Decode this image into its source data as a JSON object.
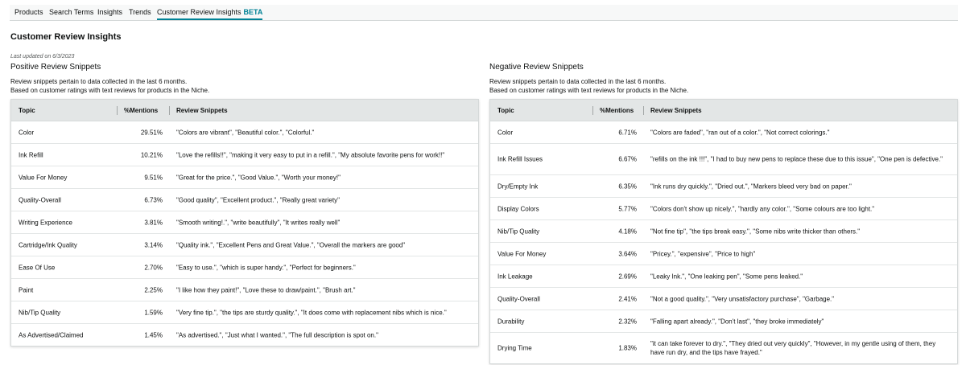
{
  "nav": {
    "tabs": [
      "Products",
      "Search Terms",
      "Insights",
      "Trends",
      "Customer Review Insights"
    ],
    "beta": "BETA",
    "active_color": "#008296"
  },
  "page": {
    "title": "Customer Review Insights",
    "last_updated": "Last updated on 6/3/2023"
  },
  "positive": {
    "title": "Positive Review Snippets",
    "desc1": "Review snippets pertain to data collected in the last 6 months.",
    "desc2": "Based on customer ratings with text reviews for products in the Niche.",
    "headers": [
      "Topic",
      "%Mentions",
      "Review Snippets"
    ],
    "rows": [
      {
        "topic": "Color",
        "pct": "29.51%",
        "snippet": "\"Colors are vibrant\", \"Beautiful color.\", \"Colorful.\""
      },
      {
        "topic": "Ink Refill",
        "pct": "10.21%",
        "snippet": "\"Love the refills!!\", \"making it very easy to put in a refill.\", \"My absolute favorite pens for work!!\""
      },
      {
        "topic": "Value For Money",
        "pct": "9.51%",
        "snippet": "\"Great for the price.\", \"Good Value.\", \"Worth your money!\""
      },
      {
        "topic": "Quality-Overall",
        "pct": "6.73%",
        "snippet": "\"Good quality\", \"Excellent product.\", \"Really great variety\""
      },
      {
        "topic": "Writing Experience",
        "pct": "3.81%",
        "snippet": "\"Smooth writing!.\", \"write beautifully\", \"It writes really well\""
      },
      {
        "topic": "Cartridge/Ink Quality",
        "pct": "3.14%",
        "snippet": "\"Quality ink.\", \"Excellent Pens and Great Value.\", \"Overall the markers are good\""
      },
      {
        "topic": "Ease Of Use",
        "pct": "2.70%",
        "snippet": "\"Easy to use.\", \"which is super handy.\", \"Perfect for beginners.\""
      },
      {
        "topic": "Paint",
        "pct": "2.25%",
        "snippet": "\"I like how they paint!\", \"Love these to draw/paint.\", \"Brush art.\""
      },
      {
        "topic": "Nib/Tip Quality",
        "pct": "1.59%",
        "snippet": "\"Very fine tip.\", \"the tips are sturdy quality.\", \"It does come with replacement nibs which is nice.\""
      },
      {
        "topic": "As Advertised/Claimed",
        "pct": "1.45%",
        "snippet": "\"As advertised.\", \"Just what I wanted.\", \"The full description is spot on.\""
      }
    ]
  },
  "negative": {
    "title": "Negative Review Snippets",
    "desc1": "Review snippets pertain to data collected in the last 6 months.",
    "desc2": "Based on customer ratings with text reviews for products in the Niche.",
    "headers": [
      "Topic",
      "%Mentions",
      "Review Snippets"
    ],
    "rows": [
      {
        "topic": "Color",
        "pct": "6.71%",
        "snippet": "\"Colors are faded\", \"ran out of a color.\", \"Not correct colorings.\""
      },
      {
        "topic": "Ink Refill Issues",
        "pct": "6.67%",
        "snippet": "\"refills on the ink !!!\", \"I had to buy new pens to replace these due to this issue\", \"One pen is defective.\""
      },
      {
        "topic": "Dry/Empty Ink",
        "pct": "6.35%",
        "snippet": "\"Ink runs dry quickly.\", \"Dried out.\", \"Markers bleed very bad on paper.\""
      },
      {
        "topic": "Display Colors",
        "pct": "5.77%",
        "snippet": "\"Colors don't show up nicely.\", \"hardly any color.\", \"Some colours are too light.\""
      },
      {
        "topic": "Nib/Tip Quality",
        "pct": "4.18%",
        "snippet": "\"Not fine tip\", \"the tips break easy.\", \"Some nibs write thicker than others.\""
      },
      {
        "topic": "Value For Money",
        "pct": "3.64%",
        "snippet": "\"Pricey.\", \"expensive\", \"Price to high\""
      },
      {
        "topic": "Ink Leakage",
        "pct": "2.69%",
        "snippet": "\"Leaky Ink.\", \"One leaking pen\", \"Some pens leaked.\""
      },
      {
        "topic": "Quality-Overall",
        "pct": "2.41%",
        "snippet": "\"Not a good quality.\", \"Very unsatisfactory purchase\", \"Garbage.\""
      },
      {
        "topic": "Durability",
        "pct": "2.32%",
        "snippet": "\"Falling apart already.\", \"Don't last\", \"they broke immediately\""
      },
      {
        "topic": "Drying Time",
        "pct": "1.83%",
        "snippet": "\"it can take forever to dry.\", \"They dried out very quickly\", \"However, in my gentle using of them, they have run dry, and the tips have frayed.\""
      }
    ]
  }
}
